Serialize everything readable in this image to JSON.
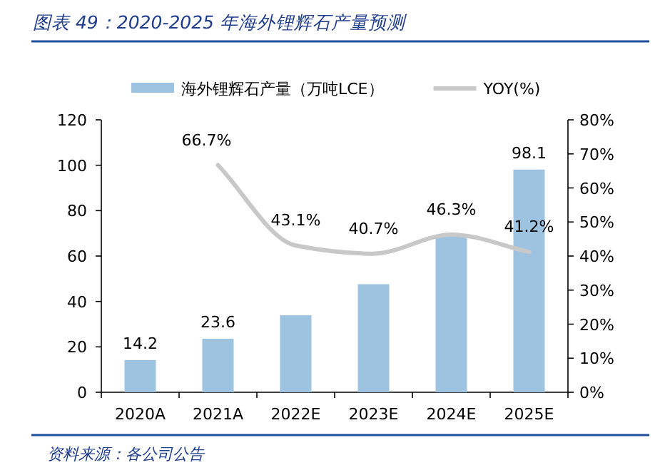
{
  "chart_data": {
    "type": "bar",
    "title": "图表 49：2020-2025 年海外锂辉石产量预测",
    "categories": [
      "2020A",
      "2021A",
      "2022E",
      "2023E",
      "2024E",
      "2025E"
    ],
    "series": [
      {
        "name": "海外锂辉石产量（万吨LCE）",
        "color": "#9dc3e0",
        "values": [
          14.2,
          23.6,
          33.9,
          47.6,
          69.0,
          98.1
        ],
        "value_labels": [
          "14.2",
          "23.6",
          null,
          null,
          null,
          "98.1"
        ]
      },
      {
        "name": "YOY(%)",
        "type": "line",
        "axis": "y2",
        "color": "#c8c8c8",
        "values": [
          null,
          66.7,
          43.1,
          40.7,
          46.3,
          41.2
        ],
        "value_labels": [
          null,
          "66.7%",
          "43.1%",
          "40.7%",
          "46.3%",
          "41.2%"
        ]
      }
    ],
    "ylim": [
      0,
      120
    ],
    "yticks": [
      0,
      20,
      40,
      60,
      80,
      100,
      120
    ],
    "y2lim": [
      0,
      80
    ],
    "y2ticks": [
      {
        "value": 0,
        "label": "0%"
      },
      {
        "value": 10,
        "label": "10%"
      },
      {
        "value": 20,
        "label": "20%"
      },
      {
        "value": 30,
        "label": "30%"
      },
      {
        "value": 40,
        "label": "40%"
      },
      {
        "value": 50,
        "label": "50%"
      },
      {
        "value": 60,
        "label": "60%"
      },
      {
        "value": 70,
        "label": "70%"
      },
      {
        "value": 80,
        "label": "80%"
      }
    ],
    "legend": "top",
    "annotations": [
      "资料来源：各公司公告"
    ]
  }
}
